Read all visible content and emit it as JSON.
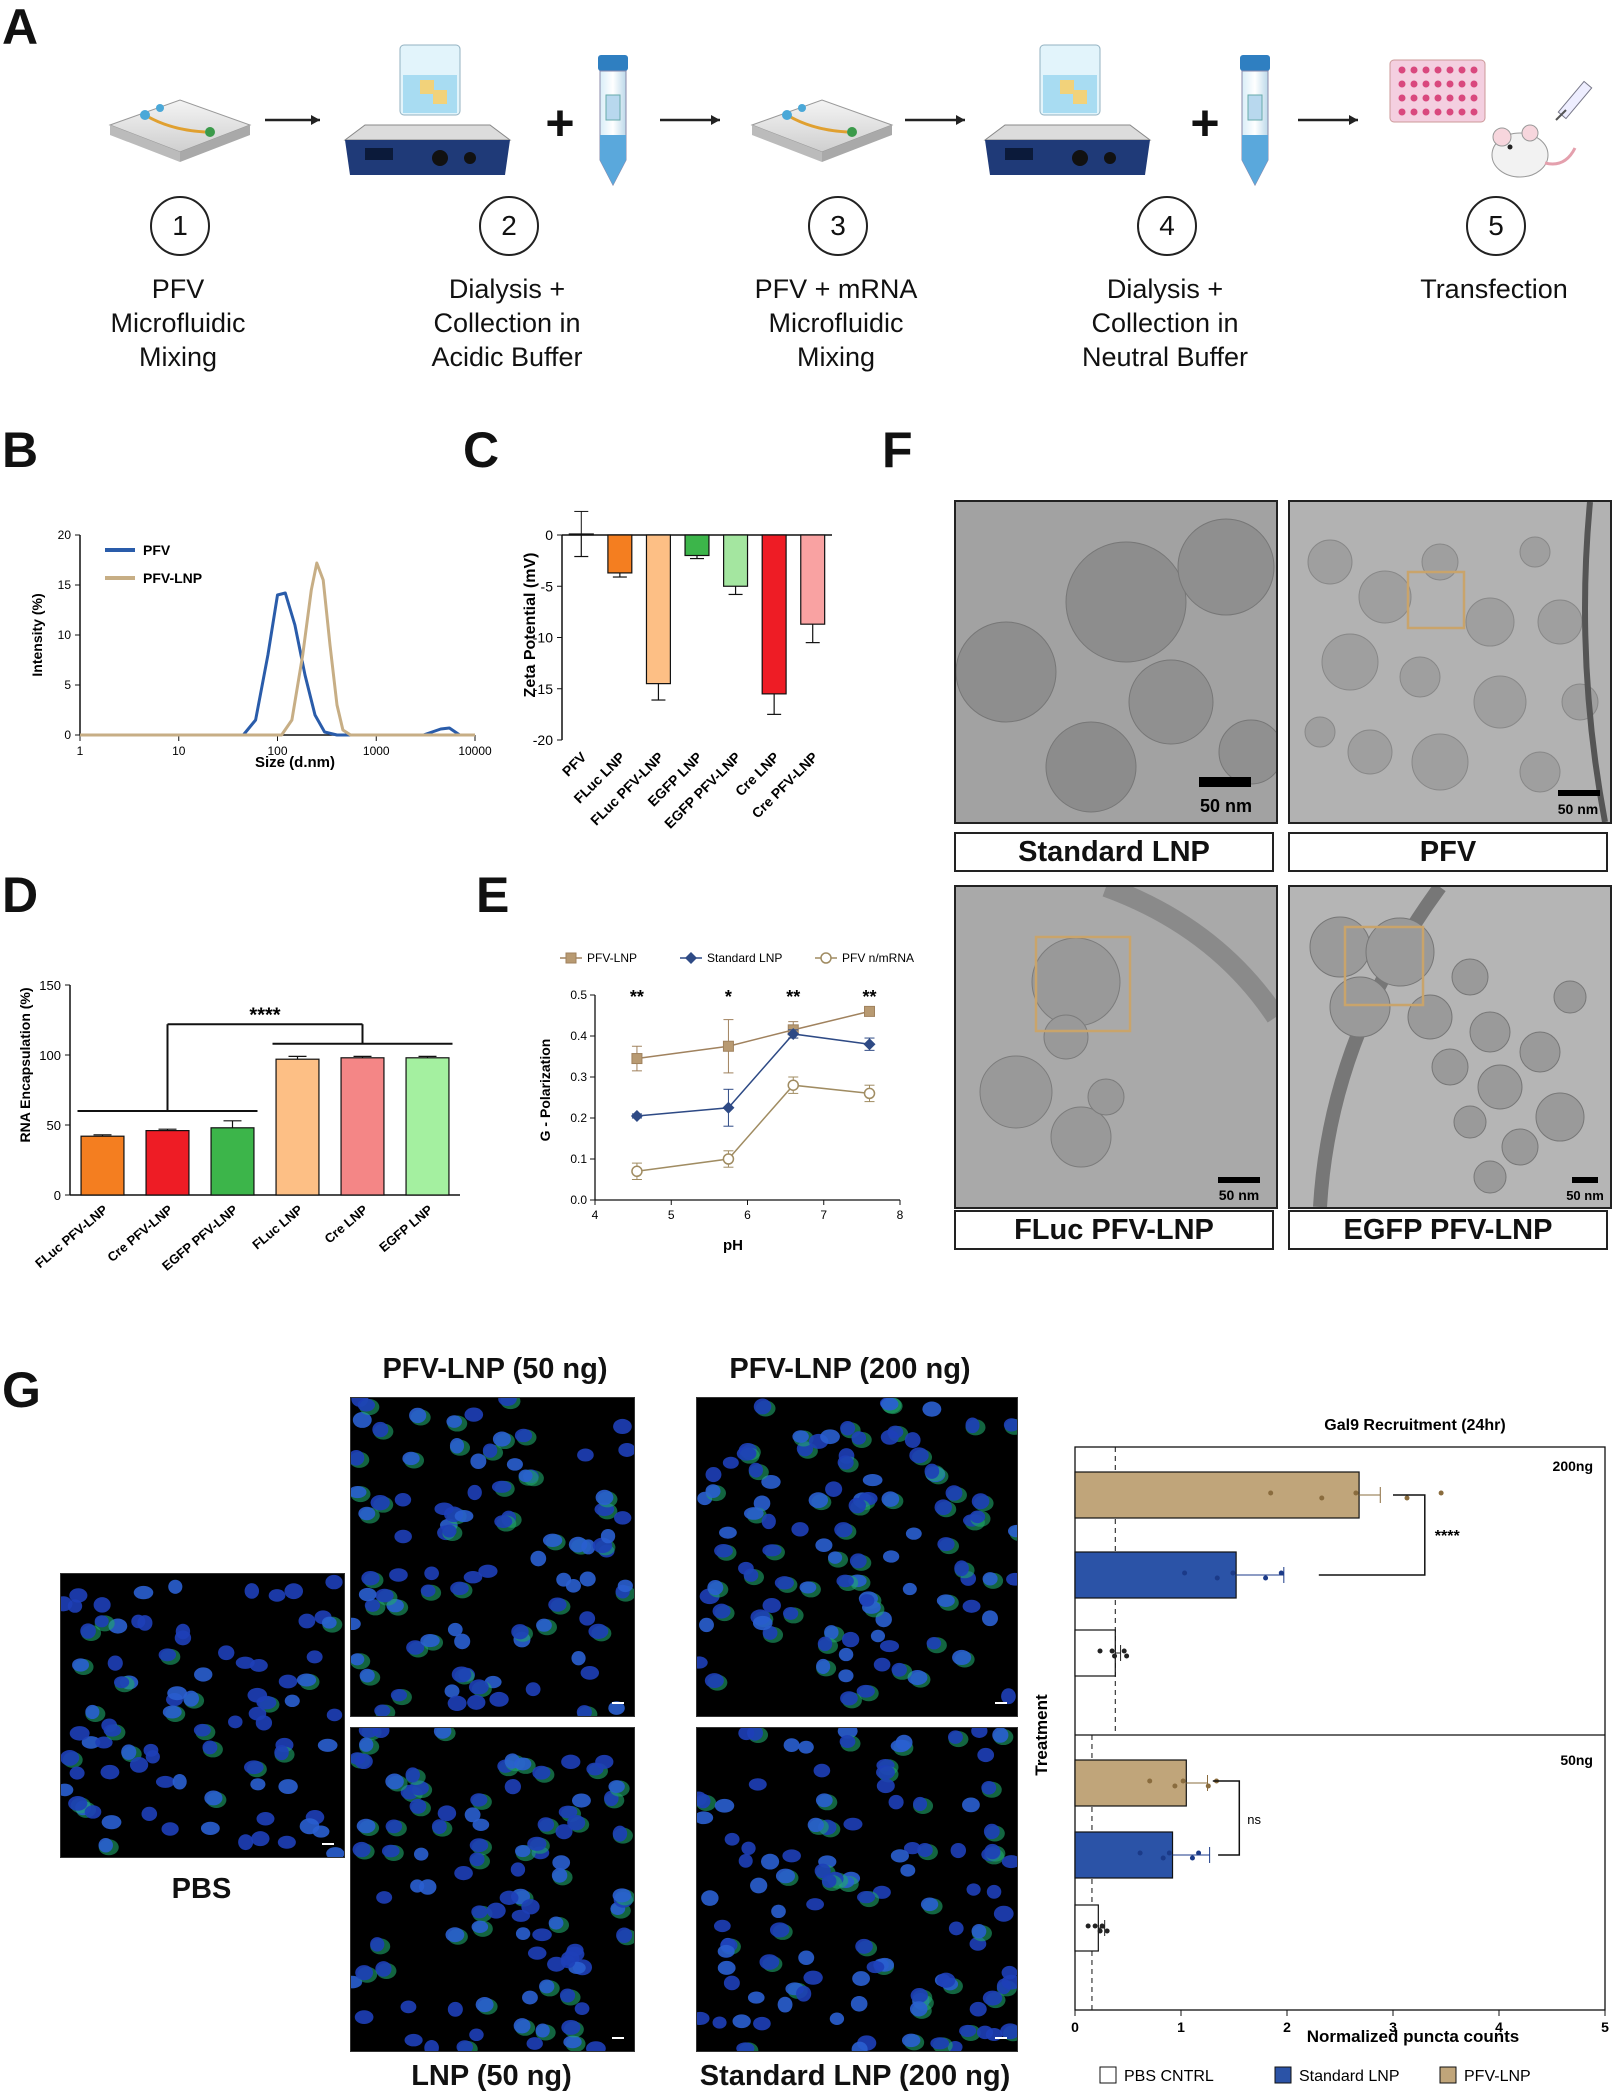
{
  "panel_labels": {
    "a": "A",
    "b": "B",
    "c": "C",
    "d": "D",
    "e": "E",
    "f": "F",
    "g": "G"
  },
  "workflow": {
    "steps": [
      {
        "num": "1",
        "label": "PFV\nMicrofluidic\nMixing"
      },
      {
        "num": "2",
        "label": "Dialysis +\nCollection in\nAcidic Buffer"
      },
      {
        "num": "3",
        "label": "PFV + mRNA\nMicrofluidic\nMixing"
      },
      {
        "num": "4",
        "label": "Dialysis +\nCollection in\nNeutral Buffer"
      },
      {
        "num": "5",
        "label": "Transfection"
      }
    ],
    "plus": "+"
  },
  "panel_b": {
    "xlabel": "Size (d.nm)",
    "ylabel": "Intensity (%)",
    "xticks": [
      "1",
      "10",
      "100",
      "1000",
      "10000"
    ],
    "yticks": [
      "0",
      "5",
      "10",
      "15",
      "20"
    ],
    "legend": [
      {
        "name": "PFV",
        "color": "#2a5caa"
      },
      {
        "name": "PFV-LNP",
        "color": "#c7ae85"
      }
    ]
  },
  "panel_c": {
    "ylabel": "Zeta Potential (mV)",
    "yticks": [
      "0",
      "-5",
      "-10",
      "-15",
      "-20"
    ],
    "categories": [
      "PFV",
      "FLuc LNP",
      "FLuc PFV-LNP",
      "EGFP LNP",
      "EGFP PFV-LNP",
      "Cre LNP",
      "Cre PFV-LNP"
    ]
  },
  "panel_d": {
    "ylabel": "RNA Encapsulation (%)",
    "yticks": [
      "0",
      "50",
      "100",
      "150"
    ],
    "categories": [
      "FLuc PFV-LNP",
      "Cre PFV-LNP",
      "EGFP PFV-LNP",
      "FLuc LNP",
      "Cre LNP",
      "EGFP LNP"
    ],
    "sig": "****"
  },
  "panel_e": {
    "xlabel": "pH",
    "ylabel": "G - Polarization",
    "xticks": [
      "4",
      "5",
      "6",
      "7",
      "8"
    ],
    "yticks": [
      "0.0",
      "0.1",
      "0.2",
      "0.3",
      "0.4",
      "0.5"
    ],
    "legend": [
      "PFV-LNP",
      "Standard LNP",
      "PFV n/mRNA"
    ],
    "sig": [
      "**",
      "*",
      "**",
      "**"
    ]
  },
  "panel_f": {
    "labels": [
      "Standard LNP",
      "PFV",
      "FLuc PFV-LNP",
      "EGFP PFV-LNP"
    ],
    "scale": "50 nm"
  },
  "panel_g": {
    "micrographs": [
      "PBS",
      "PFV-LNP (50 ng)",
      "PFV-LNP (200 ng)",
      "LNP (50 ng)",
      "Standard LNP (200 ng)"
    ],
    "chart_title": "Gal9 Recruitment (24hr)",
    "xlabel": "Normalized puncta counts",
    "ylabel": "Treatment",
    "xticks": [
      "0",
      "1",
      "2",
      "3",
      "4",
      "5"
    ],
    "groups": [
      "200ng",
      "50ng"
    ],
    "sig": [
      "****",
      "ns"
    ],
    "legend": [
      "PBS CNTRL",
      "Standard LNP",
      "PFV-LNP"
    ]
  },
  "colors": {
    "pfv_blue": "#2a5caa",
    "pfv_lnp_tan": "#c7ae85",
    "gal9_tan": "#c0a57a",
    "gal9_blue": "#2b53a7",
    "e_brown": "#a0825e",
    "e_navy": "#2e4a85",
    "e_tan": "#a08c62",
    "box": "#c9a46b"
  },
  "chart_data": [
    {
      "type": "line",
      "panel": "B",
      "xlabel": "Size (d.nm)",
      "ylabel": "Intensity (%)",
      "xscale": "log",
      "xlim": [
        1,
        10000
      ],
      "ylim": [
        0,
        20
      ],
      "series": [
        {
          "name": "PFV",
          "x": [
            1,
            45,
            60,
            80,
            100,
            120,
            150,
            190,
            240,
            300,
            400,
            3000,
            4500,
            5500,
            7000,
            10000
          ],
          "y": [
            0,
            0,
            1.5,
            8,
            14,
            14.2,
            11,
            6,
            2,
            0.3,
            0,
            0,
            0.6,
            0.7,
            0,
            0
          ]
        },
        {
          "name": "PFV-LNP",
          "x": [
            1,
            110,
            140,
            180,
            220,
            250,
            290,
            340,
            400,
            460,
            550,
            10000
          ],
          "y": [
            0,
            0,
            1.5,
            8,
            14.5,
            17.2,
            15.5,
            9,
            3,
            0.5,
            0,
            0
          ]
        }
      ]
    },
    {
      "type": "bar",
      "panel": "C",
      "ylabel": "Zeta Potential (mV)",
      "ylim": [
        -20,
        0
      ],
      "categories": [
        "PFV",
        "FLuc LNP",
        "FLuc PFV-LNP",
        "EGFP LNP",
        "EGFP PFV-LNP",
        "Cre LNP",
        "Cre PFV-LNP"
      ],
      "values": [
        0.1,
        -3.7,
        -14.5,
        -2.0,
        -5.0,
        -15.5,
        -8.7
      ],
      "errors": [
        2.2,
        0.4,
        1.6,
        0.3,
        0.8,
        2.0,
        1.8
      ],
      "colors": [
        "#ffffff",
        "#f47e20",
        "#fdbf85",
        "#3cb54a",
        "#a4e6a0",
        "#ee1c25",
        "#f9a2a2"
      ]
    },
    {
      "type": "bar",
      "panel": "D",
      "ylabel": "RNA Encapsulation (%)",
      "ylim": [
        0,
        150
      ],
      "categories": [
        "FLuc PFV-LNP",
        "Cre PFV-LNP",
        "EGFP PFV-LNP",
        "FLuc LNP",
        "Cre LNP",
        "EGFP LNP"
      ],
      "values": [
        42,
        46,
        48,
        97,
        98,
        98
      ],
      "errors": [
        1,
        1,
        5,
        2,
        1,
        1
      ],
      "colors": [
        "#f47e20",
        "#ee1c25",
        "#3cb54a",
        "#fdbf85",
        "#f48686",
        "#a4f0a0"
      ]
    },
    {
      "type": "line",
      "panel": "E",
      "xlabel": "pH",
      "ylabel": "G - Polarization",
      "xlim": [
        4,
        8
      ],
      "ylim": [
        0,
        0.5
      ],
      "series": [
        {
          "name": "PFV-LNP",
          "x": [
            4.55,
            5.75,
            6.6,
            7.6
          ],
          "y": [
            0.345,
            0.375,
            0.415,
            0.46
          ],
          "err": [
            0.03,
            0.065,
            0.02,
            0.01
          ]
        },
        {
          "name": "Standard LNP",
          "x": [
            4.55,
            5.75,
            6.6,
            7.6
          ],
          "y": [
            0.205,
            0.225,
            0.405,
            0.38
          ],
          "err": [
            0.005,
            0.045,
            0.01,
            0.015
          ]
        },
        {
          "name": "PFV n/mRNA",
          "x": [
            4.55,
            5.75,
            6.6,
            7.6
          ],
          "y": [
            0.07,
            0.1,
            0.28,
            0.26
          ],
          "err": [
            0.02,
            0.02,
            0.02,
            0.02
          ]
        }
      ]
    },
    {
      "type": "bar",
      "panel": "G",
      "orientation": "horizontal",
      "title": "Gal9 Recruitment (24hr)",
      "xlabel": "Normalized puncta counts",
      "ylabel": "Treatment",
      "xlim": [
        0,
        5
      ],
      "groups": [
        "200ng",
        "50ng"
      ],
      "series": [
        {
          "name": "PFV-LNP",
          "values": [
            2.68,
            1.05
          ],
          "errors": [
            0.2,
            0.2
          ]
        },
        {
          "name": "Standard LNP",
          "values": [
            1.52,
            0.92
          ],
          "errors": [
            0.45,
            0.35
          ]
        },
        {
          "name": "PBS CNTRL",
          "values": [
            0.38,
            0.22
          ],
          "errors": [
            0.05,
            0.06
          ]
        }
      ]
    }
  ]
}
